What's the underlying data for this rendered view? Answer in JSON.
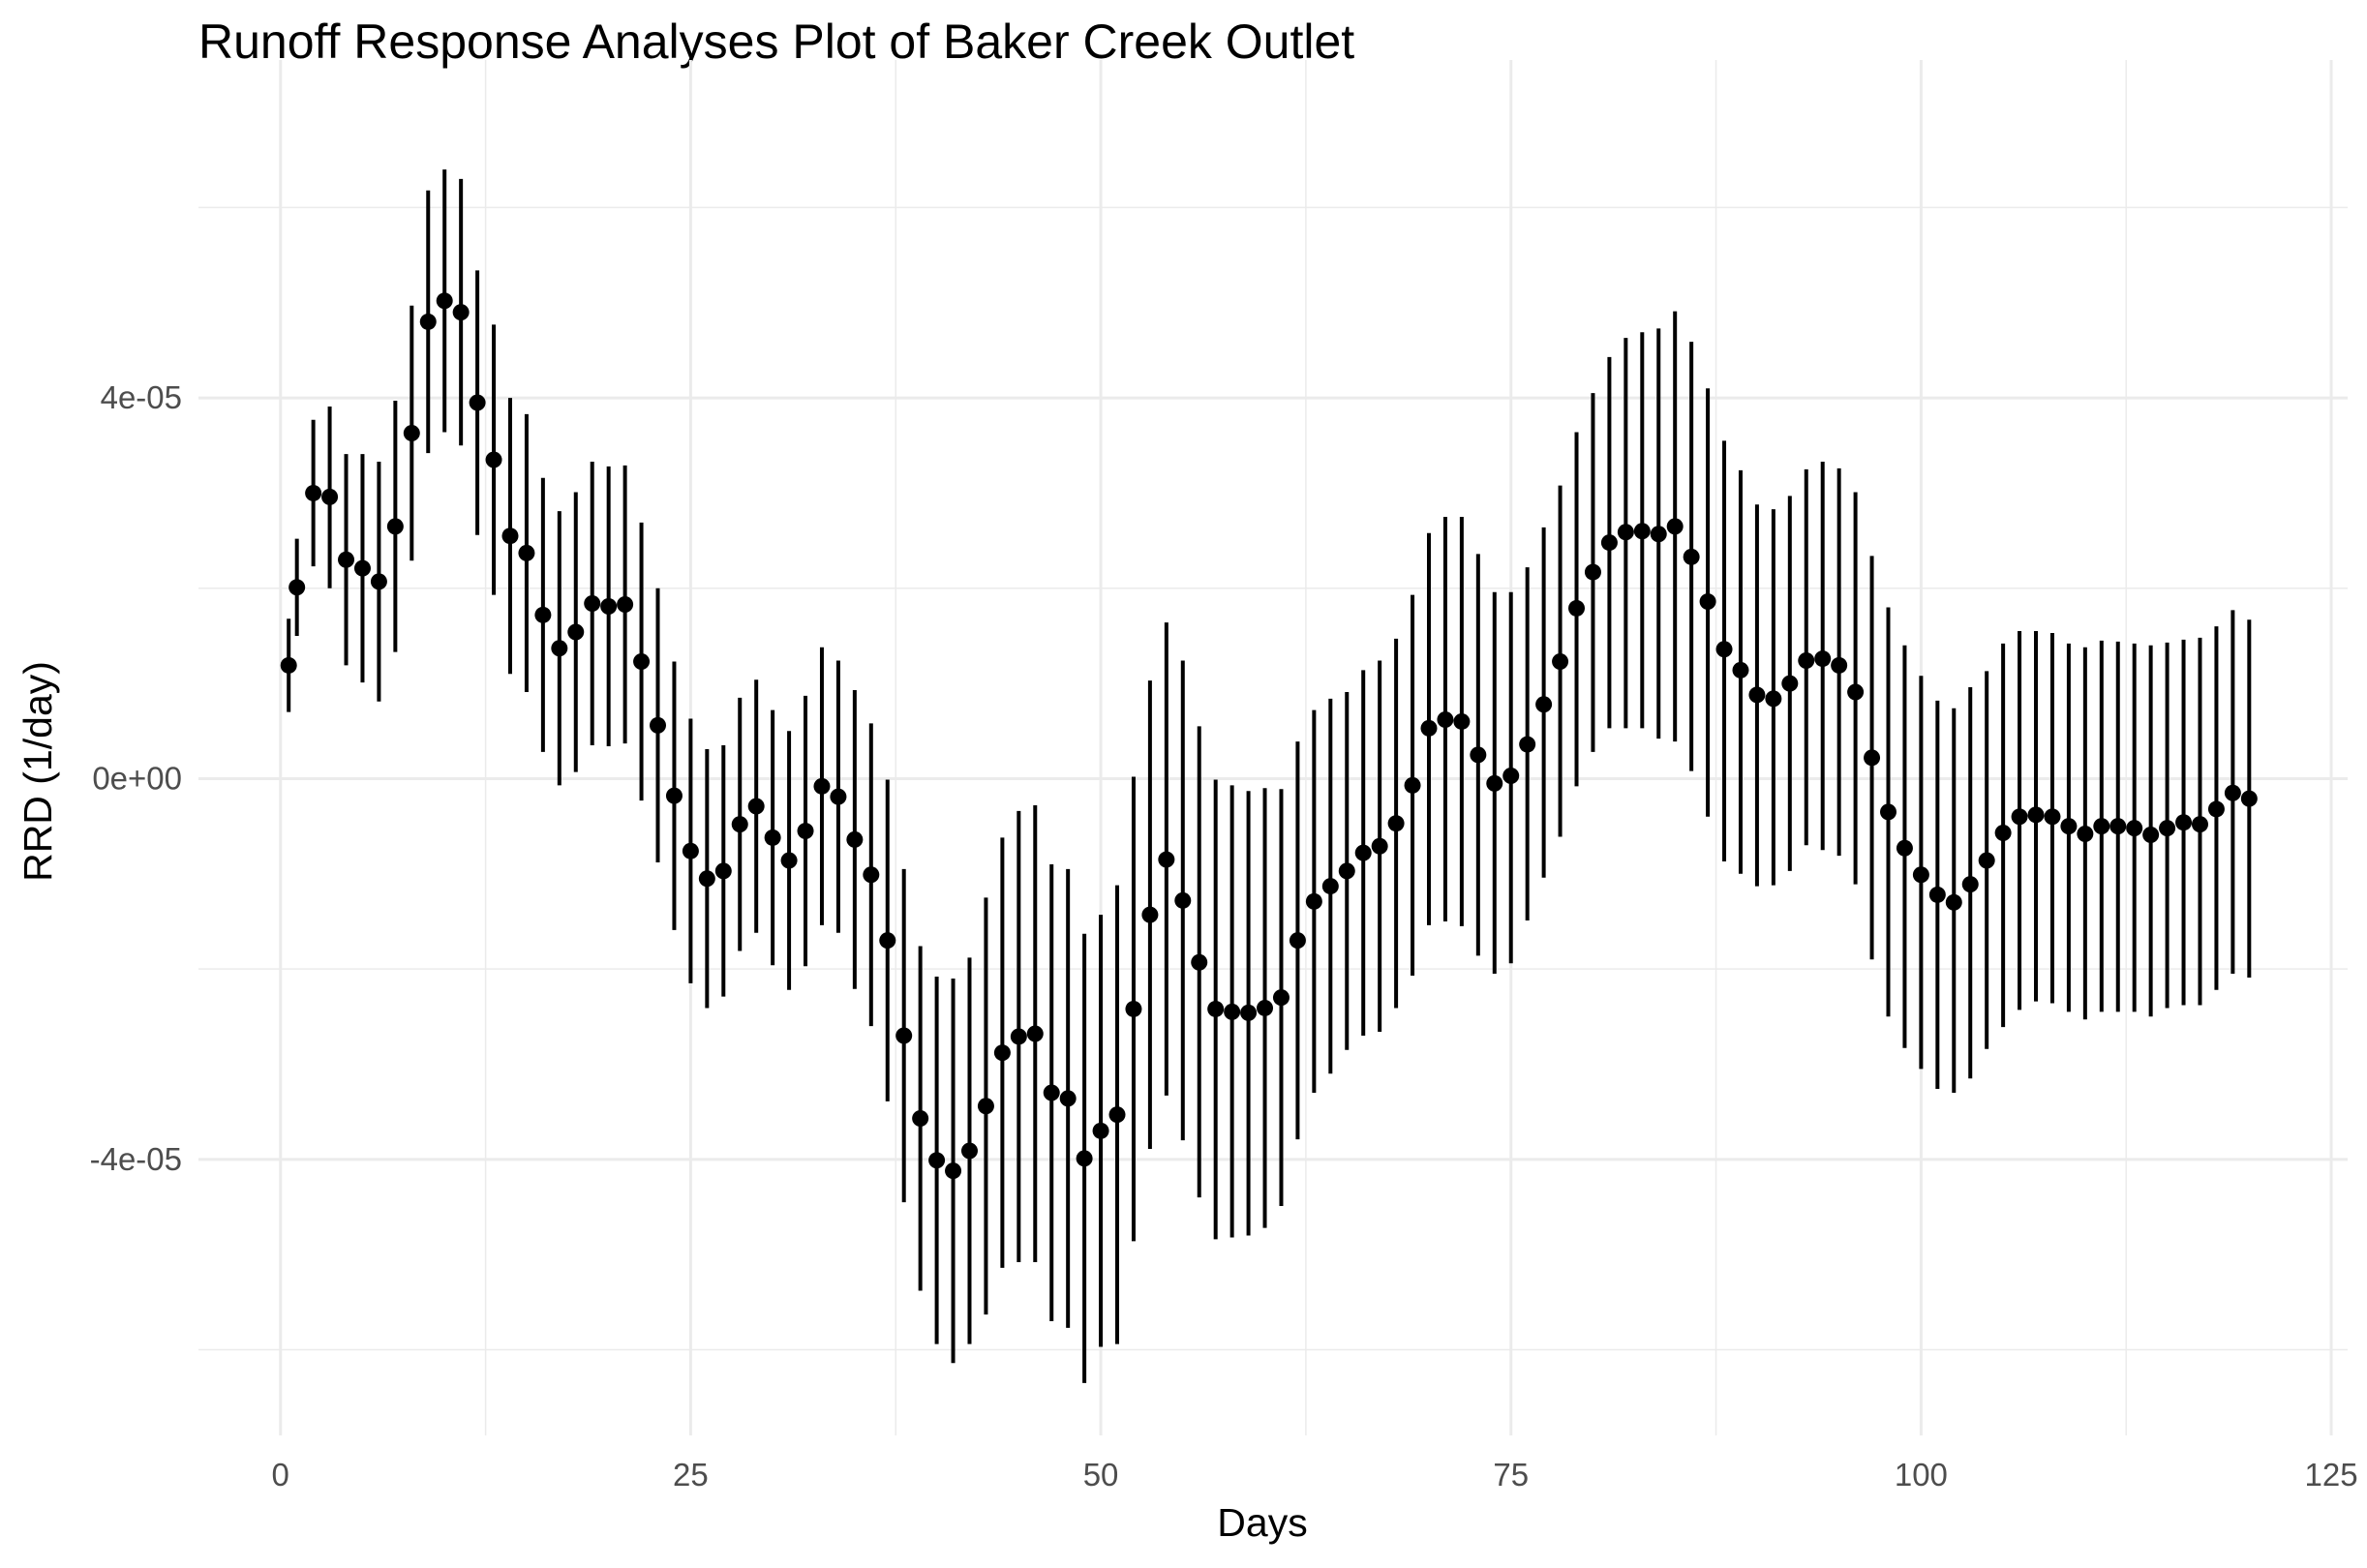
{
  "chart_data": {
    "type": "errorbar",
    "title": "Runoff Response Analyses Plot of Baker Creek Outlet",
    "xlabel": "Days",
    "ylabel": "RRD (1/day)",
    "xlim": [
      -5,
      126
    ],
    "ylim": [
      -6.9e-05,
      7.55e-05
    ],
    "x_ticks": [
      0,
      25,
      50,
      75,
      100,
      125
    ],
    "x_tick_labels": [
      "0",
      "25",
      "50",
      "75",
      "100",
      "125"
    ],
    "y_ticks": [
      4e-05,
      0,
      -4e-05
    ],
    "y_tick_labels": [
      "4e-05",
      "0e+00",
      "-4e-05"
    ],
    "grid": true,
    "legend": "none",
    "point_color": "#000000",
    "gridline_color": "#ebebeb",
    "x": [
      0.5,
      1,
      2,
      3,
      4,
      5,
      6,
      7,
      8,
      9,
      10,
      11,
      12,
      13,
      14,
      15,
      16,
      17,
      18,
      19,
      20,
      21,
      22,
      23,
      24,
      25,
      26,
      27,
      28,
      29,
      30,
      31,
      32,
      33,
      34,
      35,
      36,
      37,
      38,
      39,
      40,
      41,
      42,
      43,
      44,
      45,
      46,
      47,
      48,
      49,
      50,
      51,
      52,
      53,
      54,
      55,
      56,
      57,
      58,
      59,
      60,
      61,
      62,
      63,
      64,
      65,
      66,
      67,
      68,
      69,
      70,
      71,
      72,
      73,
      74,
      75,
      76,
      77,
      78,
      79,
      80,
      81,
      82,
      83,
      84,
      85,
      86,
      87,
      88,
      89,
      90,
      91,
      92,
      93,
      94,
      95,
      96,
      97,
      98,
      99,
      100,
      101,
      102,
      103,
      104,
      105,
      106,
      107,
      108,
      109,
      110,
      111,
      112,
      113,
      114,
      115,
      116,
      117,
      118,
      119,
      120
    ],
    "y": [
      1.19e-05,
      2.01e-05,
      3e-05,
      2.96e-05,
      2.3e-05,
      2.21e-05,
      2.07e-05,
      2.65e-05,
      3.63e-05,
      4.8e-05,
      5.02e-05,
      4.9e-05,
      3.95e-05,
      3.35e-05,
      2.55e-05,
      2.37e-05,
      1.72e-05,
      1.37e-05,
      1.54e-05,
      1.84e-05,
      1.81e-05,
      1.83e-05,
      1.23e-05,
      5.6e-06,
      -1.8e-06,
      -7.6e-06,
      -1.05e-05,
      -9.7e-06,
      -4.8e-06,
      -2.9e-06,
      -6.2e-06,
      -8.6e-06,
      -5.5e-06,
      -8e-07,
      -1.9e-06,
      -6.4e-06,
      -1.01e-05,
      -1.7e-05,
      -2.7e-05,
      -3.57e-05,
      -4.01e-05,
      -4.12e-05,
      -3.91e-05,
      -3.44e-05,
      -2.88e-05,
      -2.71e-05,
      -2.68e-05,
      -3.3e-05,
      -3.36e-05,
      -3.99e-05,
      -3.7e-05,
      -3.53e-05,
      -2.42e-05,
      -1.43e-05,
      -8.5e-06,
      -1.28e-05,
      -1.93e-05,
      -2.42e-05,
      -2.45e-05,
      -2.46e-05,
      -2.41e-05,
      -2.3e-05,
      -1.7e-05,
      -1.29e-05,
      -1.13e-05,
      -9.7e-06,
      -7.8e-06,
      -7.1e-06,
      -4.7e-06,
      -7e-07,
      5.3e-06,
      6.2e-06,
      6e-06,
      2.5e-06,
      -5e-07,
      3e-07,
      3.6e-06,
      7.8e-06,
      1.23e-05,
      1.79e-05,
      2.17e-05,
      2.48e-05,
      2.59e-05,
      2.6e-05,
      2.57e-05,
      2.65e-05,
      2.33e-05,
      1.86e-05,
      1.36e-05,
      1.14e-05,
      8.8e-06,
      8.4e-06,
      1e-05,
      1.24e-05,
      1.26e-05,
      1.19e-05,
      9.1e-06,
      2.2e-06,
      -3.5e-06,
      -7.3e-06,
      -1.01e-05,
      -1.22e-05,
      -1.3e-05,
      -1.11e-05,
      -8.6e-06,
      -5.7e-06,
      -4e-06,
      -3.8e-06,
      -4e-06,
      -5e-06,
      -5.8e-06,
      -5e-06,
      -5e-06,
      -5.2e-06,
      -5.9e-06,
      -5.2e-06,
      -4.6e-06,
      -4.8e-06,
      -3.2e-06,
      -1.5e-06,
      -2.1e-06
    ],
    "ymin": [
      7e-06,
      1.5e-05,
      2.23e-05,
      2e-05,
      1.19e-05,
      1.01e-05,
      8.1e-06,
      1.33e-05,
      2.29e-05,
      3.42e-05,
      3.64e-05,
      3.5e-05,
      2.56e-05,
      1.93e-05,
      1.1e-05,
      9.1e-06,
      2.8e-06,
      -7e-07,
      7e-07,
      3.5e-06,
      3.4e-06,
      3.7e-06,
      -2.3e-06,
      -8.8e-06,
      -1.59e-05,
      -2.15e-05,
      -2.41e-05,
      -2.29e-05,
      -1.81e-05,
      -1.62e-05,
      -1.96e-05,
      -2.22e-05,
      -1.97e-05,
      -1.54e-05,
      -1.62e-05,
      -2.21e-05,
      -2.6e-05,
      -3.39e-05,
      -4.45e-05,
      -5.38e-05,
      -5.94e-05,
      -6.14e-05,
      -5.94e-05,
      -5.63e-05,
      -5.14e-05,
      -5.08e-05,
      -5.08e-05,
      -5.7e-05,
      -5.77e-05,
      -6.35e-05,
      -5.97e-05,
      -5.94e-05,
      -4.86e-05,
      -3.89e-05,
      -3.33e-05,
      -3.8e-05,
      -4.4e-05,
      -4.84e-05,
      -4.82e-05,
      -4.8e-05,
      -4.72e-05,
      -4.49e-05,
      -3.79e-05,
      -3.3e-05,
      -3.1e-05,
      -2.85e-05,
      -2.7e-05,
      -2.66e-05,
      -2.41e-05,
      -2.07e-05,
      -1.54e-05,
      -1.5e-05,
      -1.55e-05,
      -1.86e-05,
      -2.05e-05,
      -1.94e-05,
      -1.49e-05,
      -1.04e-05,
      -6.1e-06,
      -8e-07,
      2.8e-06,
      5.3e-06,
      5.3e-06,
      5.3e-06,
      4.2e-06,
      3.9e-06,
      8e-07,
      -4e-06,
      -8.7e-06,
      -1e-05,
      -1.13e-05,
      -1.12e-05,
      -9.7e-06,
      -7e-06,
      -7.5e-06,
      -8.1e-06,
      -1.11e-05,
      -1.9e-05,
      -2.5e-05,
      -2.83e-05,
      -3.05e-05,
      -3.26e-05,
      -3.3e-05,
      -3.15e-05,
      -2.84e-05,
      -2.61e-05,
      -2.43e-05,
      -2.34e-05,
      -2.36e-05,
      -2.45e-05,
      -2.53e-05,
      -2.45e-05,
      -2.45e-05,
      -2.45e-05,
      -2.5e-05,
      -2.41e-05,
      -2.38e-05,
      -2.38e-05,
      -2.22e-05,
      -2.05e-05,
      -2.09e-05
    ],
    "ymax": [
      1.68e-05,
      2.52e-05,
      3.77e-05,
      3.91e-05,
      3.41e-05,
      3.41e-05,
      3.33e-05,
      3.97e-05,
      4.97e-05,
      6.18e-05,
      6.4e-05,
      6.3e-05,
      5.34e-05,
      4.77e-05,
      4e-05,
      3.83e-05,
      3.16e-05,
      2.81e-05,
      3.01e-05,
      3.33e-05,
      3.28e-05,
      3.29e-05,
      2.69e-05,
      2e-05,
      1.23e-05,
      6.3e-06,
      3.1e-06,
      3.5e-06,
      8.5e-06,
      1.04e-05,
      7.2e-06,
      5e-06,
      8.7e-06,
      1.38e-05,
      1.24e-05,
      9.3e-06,
      5.8e-06,
      -1e-07,
      -9.5e-06,
      -1.76e-05,
      -2.08e-05,
      -2.1e-05,
      -1.88e-05,
      -1.25e-05,
      -6.2e-06,
      -3.4e-06,
      -2.8e-06,
      -9e-06,
      -9.5e-06,
      -1.63e-05,
      -1.43e-05,
      -1.12e-05,
      2e-07,
      1.03e-05,
      1.64e-05,
      1.24e-05,
      5.5e-06,
      -1e-07,
      -7e-07,
      -1.3e-06,
      -1e-06,
      -1.1e-06,
      3.9e-06,
      7.2e-06,
      8.4e-06,
      9.1e-06,
      1.14e-05,
      1.24e-05,
      1.47e-05,
      1.93e-05,
      2.58e-05,
      2.75e-05,
      2.75e-05,
      2.36e-05,
      1.96e-05,
      1.96e-05,
      2.22e-05,
      2.64e-05,
      3.08e-05,
      3.64e-05,
      4.05e-05,
      4.43e-05,
      4.63e-05,
      4.69e-05,
      4.73e-05,
      4.91e-05,
      4.59e-05,
      4.1e-05,
      3.55e-05,
      3.24e-05,
      2.88e-05,
      2.83e-05,
      2.97e-05,
      3.25e-05,
      3.33e-05,
      3.26e-05,
      3.01e-05,
      2.34e-05,
      1.8e-05,
      1.4e-05,
      1.08e-05,
      8.2e-06,
      7.4e-06,
      9.6e-06,
      1.13e-05,
      1.42e-05,
      1.55e-05,
      1.55e-05,
      1.53e-05,
      1.42e-05,
      1.38e-05,
      1.45e-05,
      1.44e-05,
      1.42e-05,
      1.4e-05,
      1.43e-05,
      1.46e-05,
      1.48e-05,
      1.6e-05,
      1.77e-05,
      1.67e-05
    ]
  }
}
